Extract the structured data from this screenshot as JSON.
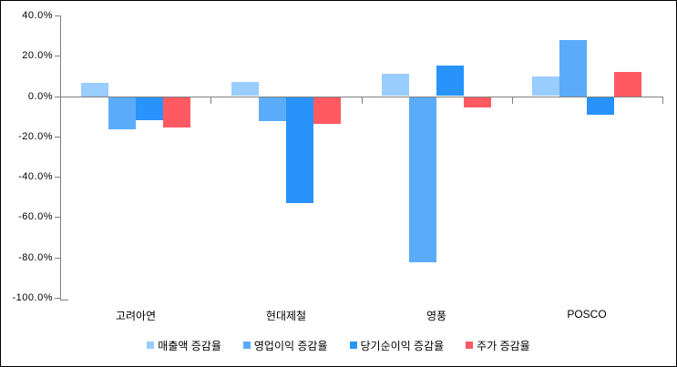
{
  "chart_data": {
    "type": "bar",
    "title": "",
    "categories": [
      "고려아연",
      "현대제철",
      "영풍",
      "POSCO"
    ],
    "series": [
      {
        "name": "매출액 증감율",
        "color": "#99CCFF",
        "values": [
          6.8,
          6.9,
          10.9,
          9.6
        ]
      },
      {
        "name": "영업이익 증감율",
        "color": "#5AACFB",
        "values": [
          -15.9,
          -11.6,
          -81.6,
          27.9
        ]
      },
      {
        "name": "당기순이익 증감율",
        "color": "#2793FB",
        "values": [
          -11.5,
          -52.3,
          15.1,
          -8.8
        ]
      },
      {
        "name": "주가 증감율",
        "color": "#FF5A62",
        "values": [
          -15.0,
          -13.1,
          -4.8,
          12.0
        ]
      }
    ],
    "xlabel": "",
    "ylabel": "",
    "ylim": [
      -100,
      40
    ],
    "ytick_step": 20,
    "ytick_values": [
      40,
      20,
      0,
      -20,
      -40,
      -60,
      -80,
      -100
    ],
    "ytick_labels": [
      "40.0%",
      "20.0%",
      "0.0%",
      "-20.0%",
      "-40.0%",
      "-60.0%",
      "-80.0%",
      "-100.0%"
    ],
    "grid": false,
    "legend_position": "bottom",
    "axis_color": "#808080"
  }
}
